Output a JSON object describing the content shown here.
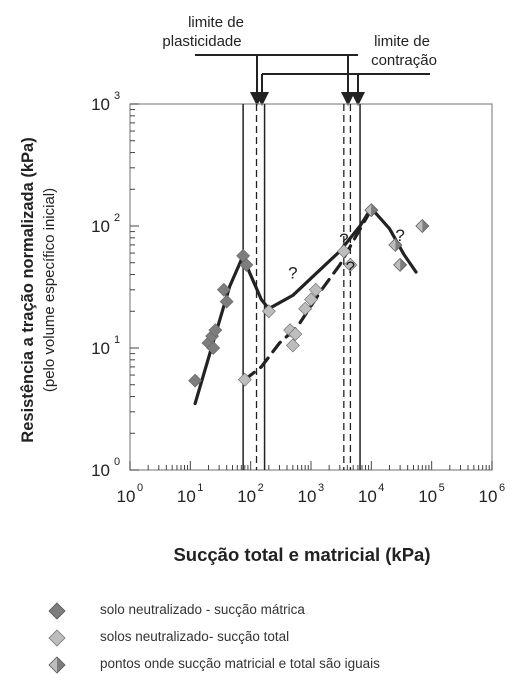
{
  "chart_data": {
    "type": "scatter",
    "ylabel": "Resistência a tração normalizada (kPa)",
    "ylabel_sub": "(pelo volume específico inicial)",
    "xlabel": "Sucção total e matricial (kPa)",
    "x_scale": "log",
    "y_scale": "log",
    "xlim": [
      1,
      1000000
    ],
    "ylim": [
      1,
      1000
    ],
    "x_ticks": [
      {
        "base": "10",
        "exp": "0"
      },
      {
        "base": "10",
        "exp": "1"
      },
      {
        "base": "10",
        "exp": "2"
      },
      {
        "base": "10",
        "exp": "3"
      },
      {
        "base": "10",
        "exp": "4"
      },
      {
        "base": "10",
        "exp": "5"
      },
      {
        "base": "10",
        "exp": "6"
      }
    ],
    "y_ticks": [
      {
        "base": "10",
        "exp": "0"
      },
      {
        "base": "10",
        "exp": "1"
      },
      {
        "base": "10",
        "exp": "2"
      },
      {
        "base": "10",
        "exp": "3"
      }
    ],
    "annotations": {
      "plasticity": "limite de plasticidade",
      "plasticity_line1": "limite de",
      "plasticity_line2": "plasticidade",
      "contraction": "limite de contração",
      "contraction_line1": "limite de",
      "contraction_line2": "contração",
      "question": "?"
    },
    "vertical_lines": [
      {
        "x": 75,
        "style": "solid"
      },
      {
        "x": 125,
        "style": "dashed"
      },
      {
        "x": 170,
        "style": "solid"
      },
      {
        "x": 3500,
        "style": "dashed"
      },
      {
        "x": 4500,
        "style": "dashed"
      },
      {
        "x": 6500,
        "style": "solid"
      }
    ],
    "series": [
      {
        "name": "solo neutralizado - sucção mátrica",
        "marker": "dark",
        "points": [
          [
            12,
            5.4
          ],
          [
            20,
            11
          ],
          [
            23,
            12.5
          ],
          [
            24,
            10
          ],
          [
            26,
            14
          ],
          [
            36,
            30
          ],
          [
            40,
            24
          ],
          [
            75,
            57
          ],
          [
            85,
            48
          ]
        ]
      },
      {
        "name": "solos neutralizado- sucção total",
        "marker": "light",
        "points": [
          [
            80,
            5.5
          ],
          [
            200,
            20
          ],
          [
            450,
            14
          ],
          [
            500,
            10.5
          ],
          [
            550,
            13
          ],
          [
            800,
            21
          ],
          [
            1000,
            25
          ],
          [
            1200,
            30
          ],
          [
            3500,
            62
          ],
          [
            4500,
            48
          ]
        ]
      },
      {
        "name": "pontos onde sucção matricial e total são iguais",
        "marker": "half",
        "points": [
          [
            10000,
            135
          ],
          [
            25000,
            70
          ],
          [
            30000,
            48
          ],
          [
            70000,
            100
          ]
        ]
      }
    ],
    "trend_lines": [
      {
        "style": "solid",
        "points": [
          [
            12,
            3.5
          ],
          [
            25,
            12
          ],
          [
            45,
            32
          ],
          [
            75,
            57
          ],
          [
            95,
            42
          ],
          [
            150,
            25
          ],
          [
            200,
            21
          ],
          [
            500,
            27
          ],
          [
            1500,
            45
          ],
          [
            3000,
            62
          ],
          [
            6500,
            100
          ],
          [
            10000,
            140
          ],
          [
            20000,
            95
          ],
          [
            35000,
            58
          ],
          [
            55000,
            42
          ]
        ]
      },
      {
        "style": "dashed",
        "points": [
          [
            80,
            5.5
          ],
          [
            150,
            7
          ],
          [
            300,
            11
          ],
          [
            600,
            15
          ],
          [
            1500,
            30
          ],
          [
            3000,
            48
          ],
          [
            5000,
            75
          ],
          [
            9000,
            125
          ],
          [
            12000,
            135
          ]
        ]
      }
    ],
    "question_marks": [
      [
        500,
        37
      ],
      [
        3500,
        70
      ],
      [
        4500,
        41
      ],
      [
        30000,
        75
      ]
    ],
    "legend_position": "bottom"
  },
  "colors": {
    "dark_marker": "#7d7d7d",
    "light_marker": "#bdbdbd",
    "line": "#222222",
    "grid": "#cccccc"
  }
}
